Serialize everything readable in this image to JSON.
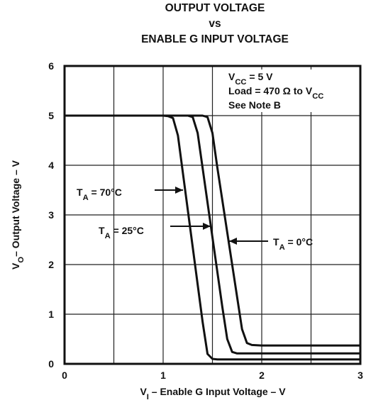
{
  "chart_data": {
    "type": "line",
    "title": [
      "OUTPUT VOLTAGE",
      "vs",
      "ENABLE G INPUT VOLTAGE"
    ],
    "x_label": [
      {
        "text": "V"
      },
      {
        "text": "I",
        "sub": true
      },
      {
        "text": " – Enable G Input Voltage – V"
      }
    ],
    "y_label": [
      {
        "text": "V"
      },
      {
        "text": "O",
        "sub": true
      },
      {
        "text": "– Output Voltage – V"
      }
    ],
    "annotations": [
      [
        {
          "text": "V"
        },
        {
          "text": "CC",
          "sub": true
        },
        {
          "text": " = 5 V"
        }
      ],
      [
        {
          "text": "Load = 470 Ω to V"
        },
        {
          "text": "CC",
          "sub": true
        }
      ],
      [
        {
          "text": "See Note B"
        }
      ],
      [
        {
          "text": "T"
        },
        {
          "text": "A",
          "sub": true
        },
        {
          "text": " = 70°C"
        }
      ],
      [
        {
          "text": "T"
        },
        {
          "text": "A",
          "sub": true
        },
        {
          "text": " = 25°C"
        }
      ],
      [
        {
          "text": "T"
        },
        {
          "text": "A",
          "sub": true
        },
        {
          "text": " = 0°C"
        }
      ]
    ],
    "x": [
      0,
      0.5,
      1,
      1.05,
      1.1,
      1.15,
      1.2,
      1.25,
      1.3,
      1.35,
      1.4,
      1.45,
      1.5,
      1.55,
      1.6,
      1.65,
      1.7,
      1.75,
      1.8,
      1.85,
      1.9,
      2,
      2.5,
      3
    ],
    "series": [
      {
        "name": "TA = 70°C",
        "color": "#111111",
        "values": [
          5,
          5,
          5,
          4.99,
          4.95,
          4.6,
          3.85,
          3.1,
          2.35,
          1.6,
          0.85,
          0.2,
          0.1,
          0.09,
          0.09,
          0.09,
          0.09,
          0.09,
          0.09,
          0.09,
          0.09,
          0.09,
          0.09,
          0.09
        ]
      },
      {
        "name": "TA = 25°C",
        "color": "#111111",
        "values": [
          5,
          5,
          5,
          5,
          5,
          5,
          5,
          5,
          4.97,
          4.65,
          3.95,
          3.25,
          2.55,
          1.85,
          1.15,
          0.5,
          0.24,
          0.21,
          0.21,
          0.21,
          0.21,
          0.21,
          0.21,
          0.21
        ]
      },
      {
        "name": "TA = 0°C",
        "color": "#111111",
        "values": [
          5,
          5,
          5,
          5,
          5,
          5,
          5,
          5,
          5,
          5,
          5,
          4.97,
          4.65,
          3.95,
          3.3,
          2.65,
          2.0,
          1.35,
          0.7,
          0.42,
          0.38,
          0.37,
          0.37,
          0.37
        ]
      }
    ],
    "xlim": [
      0,
      3
    ],
    "ylim": [
      0,
      6
    ],
    "xticks": [
      0,
      {
        "value": 0.5,
        "label": null
      },
      1,
      {
        "value": 1.5,
        "label": null
      },
      2,
      {
        "value": 2.5,
        "label": null
      },
      3
    ],
    "yticks": [
      0,
      1,
      2,
      3,
      4,
      5,
      6
    ],
    "grid": true
  }
}
